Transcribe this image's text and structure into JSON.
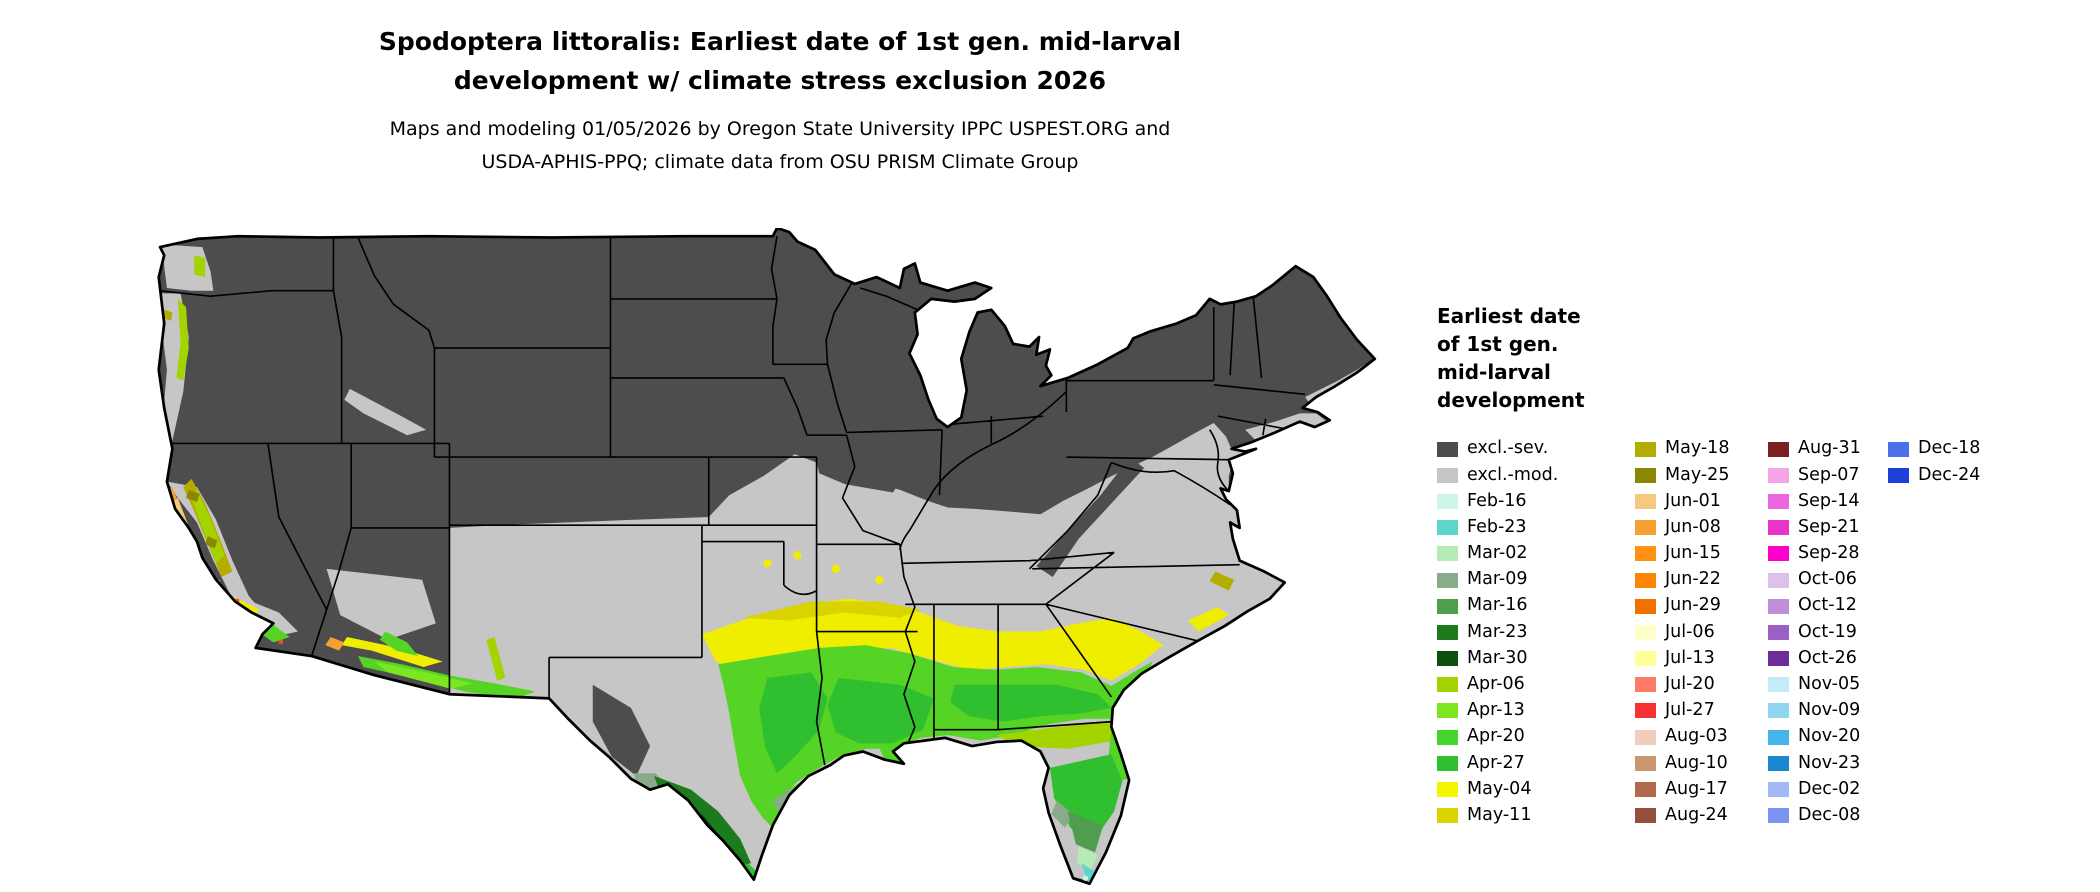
{
  "title": {
    "line1": "Spodoptera littoralis: Earliest date of 1st gen. mid-larval",
    "line2": "development w/ climate stress exclusion 2026"
  },
  "subtitle": {
    "line1": "Maps and modeling 01/05/2026 by Oregon State University IPPC USPEST.ORG and",
    "line2": "USDA-APHIS-PPQ; climate data from OSU PRISM Climate Group"
  },
  "legend": {
    "title_lines": [
      "Earliest date",
      "of 1st gen.",
      "mid-larval",
      "development"
    ],
    "columns": [
      [
        {
          "label": "excl.-sev.",
          "color": "#4d4d4d"
        },
        {
          "label": "excl.-mod.",
          "color": "#c6c6c6"
        },
        {
          "label": "Feb-16",
          "color": "#ccf7e6"
        },
        {
          "label": "Feb-23",
          "color": "#5cd6c9"
        },
        {
          "label": "Mar-02",
          "color": "#b5ecb5"
        },
        {
          "label": "Mar-09",
          "color": "#8aab8a"
        },
        {
          "label": "Mar-16",
          "color": "#4f9e4f"
        },
        {
          "label": "Mar-23",
          "color": "#1d7a1d"
        },
        {
          "label": "Mar-30",
          "color": "#0d4f0d"
        },
        {
          "label": "Apr-06",
          "color": "#a4d400"
        },
        {
          "label": "Apr-13",
          "color": "#7ce621"
        },
        {
          "label": "Apr-20",
          "color": "#44d62c"
        },
        {
          "label": "Apr-27",
          "color": "#2fbf2f"
        },
        {
          "label": "May-04",
          "color": "#f5f500"
        },
        {
          "label": "May-11",
          "color": "#d9d400"
        }
      ],
      [
        {
          "label": "May-18",
          "color": "#b3ad00"
        },
        {
          "label": "May-25",
          "color": "#8a8800"
        },
        {
          "label": "Jun-01",
          "color": "#f7c97e"
        },
        {
          "label": "Jun-08",
          "color": "#f5a033"
        },
        {
          "label": "Jun-15",
          "color": "#ff9214"
        },
        {
          "label": "Jun-22",
          "color": "#fb8500"
        },
        {
          "label": "Jun-29",
          "color": "#f07000"
        },
        {
          "label": "Jul-06",
          "color": "#ffffcc"
        },
        {
          "label": "Jul-13",
          "color": "#ffff99"
        },
        {
          "label": "Jul-20",
          "color": "#ff7a66"
        },
        {
          "label": "Jul-27",
          "color": "#f53333"
        },
        {
          "label": "Aug-03",
          "color": "#f0cdbd"
        },
        {
          "label": "Aug-10",
          "color": "#cc9670"
        },
        {
          "label": "Aug-17",
          "color": "#b06a4a"
        },
        {
          "label": "Aug-24",
          "color": "#94503a"
        }
      ],
      [
        {
          "label": "Aug-31",
          "color": "#7a2020"
        },
        {
          "label": "Sep-07",
          "color": "#f2a6e8"
        },
        {
          "label": "Sep-14",
          "color": "#ee66dd"
        },
        {
          "label": "Sep-21",
          "color": "#e833cc"
        },
        {
          "label": "Sep-28",
          "color": "#ff00cc"
        },
        {
          "label": "Oct-06",
          "color": "#dcc1e8"
        },
        {
          "label": "Oct-12",
          "color": "#bf8fd9"
        },
        {
          "label": "Oct-19",
          "color": "#9c5fc4"
        },
        {
          "label": "Oct-26",
          "color": "#6f2d99"
        },
        {
          "label": "Nov-05",
          "color": "#c4ecf7"
        },
        {
          "label": "Nov-09",
          "color": "#8fd4f0"
        },
        {
          "label": "Nov-20",
          "color": "#45b5e8"
        },
        {
          "label": "Nov-23",
          "color": "#1b87cf"
        },
        {
          "label": "Dec-02",
          "color": "#a3b8f7"
        },
        {
          "label": "Dec-08",
          "color": "#7a94f0"
        }
      ],
      [
        {
          "label": "Dec-18",
          "color": "#4d6fe8"
        },
        {
          "label": "Dec-24",
          "color": "#1f3fd9"
        }
      ]
    ]
  },
  "map": {
    "region": "Continental United States",
    "background": "#ffffff",
    "border_color": "#000000",
    "palette": {
      "excluded_severe": "#4d4d4d",
      "excluded_moderate": "#c6c6c6",
      "yellow_band": "#f0ee00",
      "yellow_olive": "#d9d400",
      "olive": "#b3ad00",
      "dark_olive": "#8a8800",
      "yellow_green": "#a4d400",
      "chartreuse": "#7ce621",
      "bright_green": "#55d426",
      "green": "#2fbf2f",
      "dark_green": "#1d7a1d",
      "darkest_green": "#0d4f0d",
      "mid_green": "#4f9e4f",
      "gray_green": "#8aab8a",
      "pale_green": "#b5ecb5",
      "teal": "#5cd6c9",
      "pale_cyan": "#ccf7e6",
      "orange": "#f5a033",
      "peach": "#f7c97e",
      "red_orange": "#f05030"
    }
  }
}
